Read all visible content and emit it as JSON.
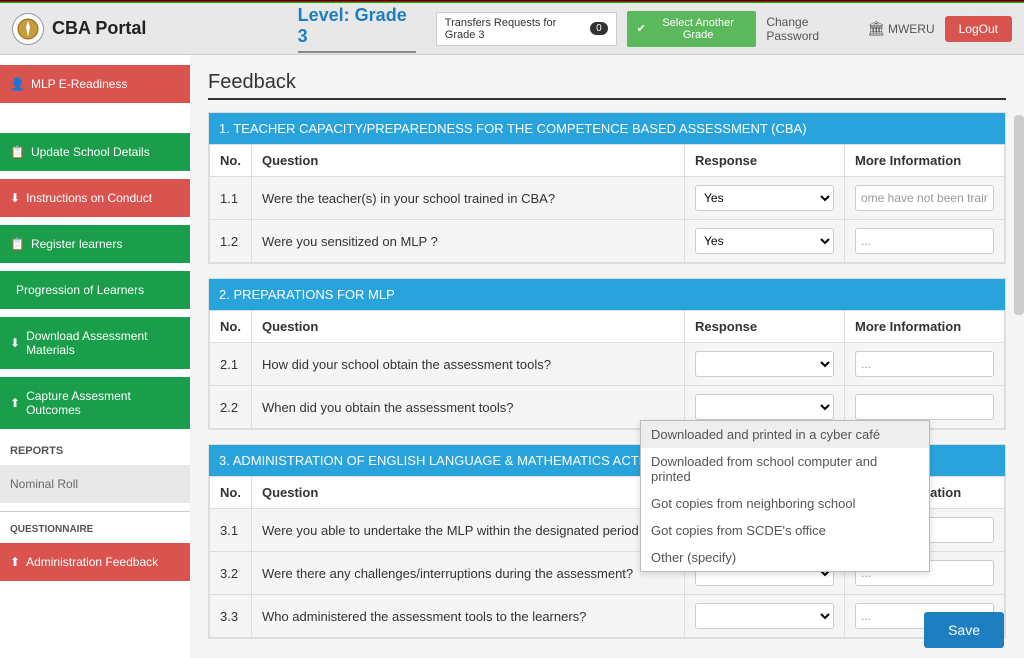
{
  "header": {
    "portal_title": "CBA Portal",
    "level_label": "Level: Grade 3",
    "transfers_label": "Transfers Requests for Grade 3",
    "transfers_count": "0",
    "select_grade_label": "Select Another Grade",
    "change_password_label": "Change Password",
    "school_name": "MWERU",
    "logout_label": "LogOut"
  },
  "sidebar": {
    "items": [
      {
        "label": "MLP E-Readiness",
        "color": "red",
        "icon": "person"
      },
      {
        "label": "Update School Details",
        "color": "green",
        "icon": "clipboard"
      },
      {
        "label": "Instructions on Conduct",
        "color": "red",
        "icon": "download"
      },
      {
        "label": "Register learners",
        "color": "green",
        "icon": "clipboard"
      },
      {
        "label": "Progression of Learners",
        "color": "green",
        "icon": ""
      },
      {
        "label": "Download Assessment Materials",
        "color": "green",
        "icon": "download"
      },
      {
        "label": "Capture Assesment Outcomes",
        "color": "green",
        "icon": "upload"
      }
    ],
    "reports_label": "REPORTS",
    "nominal_roll_label": "Nominal Roll",
    "questionnaire_label": "QUESTIONNAIRE",
    "admin_feedback_label": "Administration Feedback"
  },
  "main": {
    "title": "Feedback",
    "col_no": "No.",
    "col_question": "Question",
    "col_response": "Response",
    "col_more": "More Information",
    "sections": [
      {
        "header": "1. TEACHER CAPACITY/PREPAREDNESS FOR THE COMPETENCE BASED ASSESSMENT (CBA)",
        "rows": [
          {
            "no": "1.1",
            "q": "Were the teacher(s) in your school trained in CBA?",
            "resp": "Yes",
            "more": "ome have not been trained"
          },
          {
            "no": "1.2",
            "q": "Were you sensitized on MLP ?",
            "resp": "Yes",
            "more": "..."
          }
        ]
      },
      {
        "header": "2. PREPARATIONS FOR MLP",
        "rows": [
          {
            "no": "2.1",
            "q": "How did your school obtain the assessment tools?",
            "resp": "",
            "more": "..."
          },
          {
            "no": "2.2",
            "q": "When did you obtain the assessment tools?",
            "resp": "",
            "more": ""
          }
        ]
      },
      {
        "header": "3. ADMINISTRATION OF ENGLISH LANGUAGE & MATHEMATICS ACTIVITIES",
        "rows": [
          {
            "no": "3.1",
            "q": "Were you able to undertake the MLP within the designated period",
            "resp": "",
            "more": "..."
          },
          {
            "no": "3.2",
            "q": "Were there any challenges/interruptions during the assessment?",
            "resp": "",
            "more": "..."
          },
          {
            "no": "3.3",
            "q": "Who administered the assessment tools to the learners?",
            "resp": "",
            "more": "..."
          }
        ]
      }
    ],
    "dropdown_options": [
      "Downloaded and printed in a cyber café",
      "Downloaded from school computer and printed",
      "Got copies from neighboring school",
      "Got copies from SCDE's office",
      "Other (specify)"
    ],
    "save_label": "Save"
  },
  "colors": {
    "blue_hdr": "#29a3dc",
    "green_btn": "#5cb85c",
    "red_btn": "#d9534f",
    "side_green": "#1a9e4b",
    "save_blue": "#1e7fc0"
  }
}
